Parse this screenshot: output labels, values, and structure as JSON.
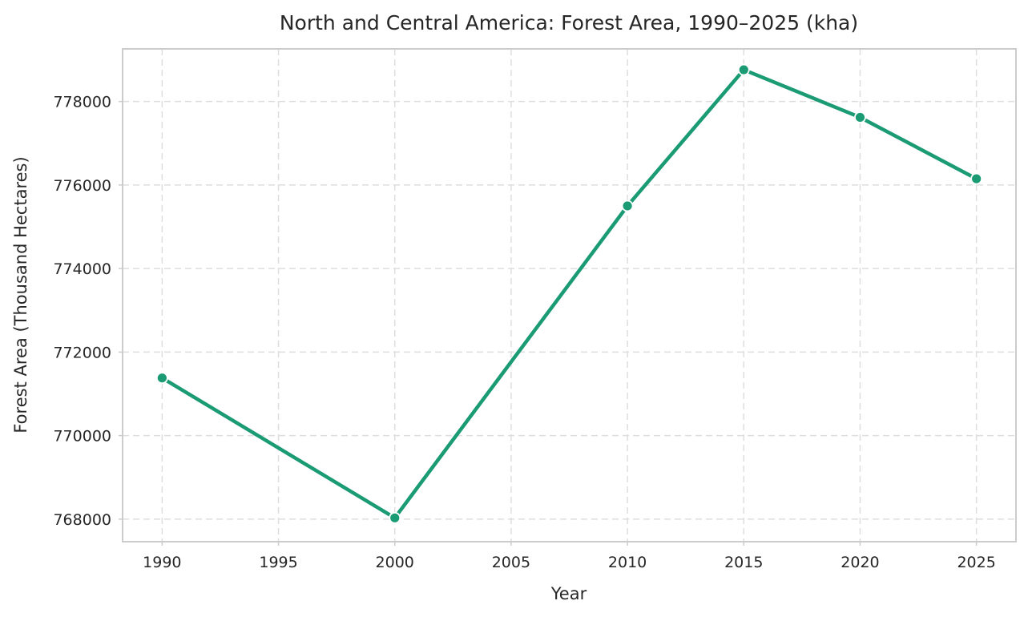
{
  "chart_data": {
    "type": "line",
    "title": "North and Central America: Forest Area, 1990–2025 (kha)",
    "xlabel": "Year",
    "ylabel": "Forest Area (Thousand Hectares)",
    "x": [
      1990,
      2000,
      2010,
      2015,
      2020,
      2025
    ],
    "series": [
      {
        "values": [
          771380,
          768030,
          775500,
          778760,
          777620,
          776150
        ]
      }
    ],
    "xticks": [
      1990,
      1995,
      2000,
      2005,
      2010,
      2015,
      2020,
      2025
    ],
    "yticks": [
      768000,
      770000,
      772000,
      774000,
      776000,
      778000
    ],
    "xlim": [
      1988.3,
      2026.7
    ],
    "ylim": [
      767460,
      779260
    ],
    "grid": true,
    "legend": "none",
    "colors": {
      "line": "#1a9b73",
      "marker": "#1a9b73",
      "marker_edge": "#ffffff"
    }
  }
}
